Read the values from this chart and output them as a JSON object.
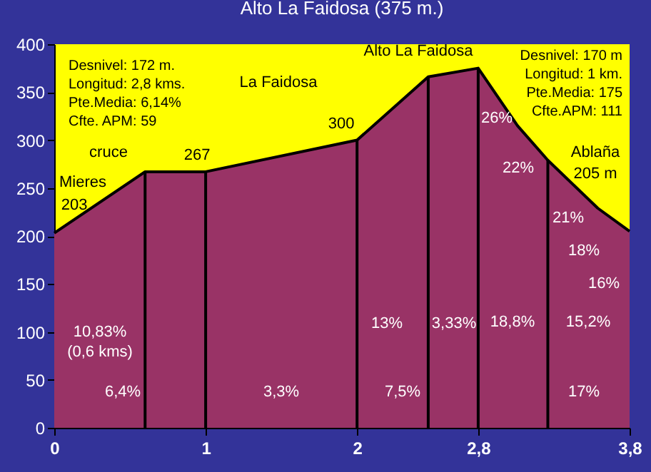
{
  "chart_data": {
    "type": "area",
    "title": "Alto La Faidosa (375 m.)",
    "x": [
      0,
      0.6,
      1,
      2,
      2.47,
      2.8,
      3.06,
      3.26,
      3.59,
      3.8
    ],
    "series": [
      {
        "color": "#993366",
        "values": [
          203,
          267,
          267,
          300,
          366,
          375,
          315,
          279,
          229,
          205
        ]
      }
    ],
    "xlim": [
      0,
      3.8
    ],
    "xticks": [
      0,
      1,
      2,
      {
        "value": 2.8,
        "label": "2,8"
      },
      {
        "value": 3.8,
        "label": "3,8"
      }
    ],
    "ylim": [
      0,
      400
    ],
    "yticks": [
      0,
      50,
      100,
      150,
      200,
      250,
      300,
      350,
      400
    ],
    "grid": false,
    "ref_lines": [
      {
        "axis": "x",
        "value": 0.6,
        "color": "#000000"
      },
      {
        "axis": "x",
        "value": 1,
        "color": "#000000"
      },
      {
        "axis": "x",
        "value": 2,
        "color": "#000000"
      },
      {
        "axis": "x",
        "value": 2.47,
        "color": "#000000"
      },
      {
        "axis": "x",
        "value": 2.8,
        "color": "#000000"
      },
      {
        "axis": "x",
        "value": 3.26,
        "color": "#000000"
      }
    ],
    "annotations": [
      "Desnivel:   172 m.\nLongitud: 2,8 kms.\nPte.Media: 6,14%\nCfte. APM: 59",
      "Desnivel: 170 m\nLongitud: 1 km.\nPte.Media: 175\nCfte.APM: 111",
      "Mieres",
      "203",
      "cruce",
      "267",
      "300",
      "La Faidosa",
      "Alto La Faidosa",
      "Ablaña",
      "205 m",
      "26%",
      "22%",
      "21%",
      "18%",
      "16%",
      "10,83%\n(0,6 kms)",
      "13%",
      "3,33%",
      "18,8%",
      "15,2%",
      "6,4%",
      "3,3%",
      "7,5%",
      "17%"
    ]
  }
}
